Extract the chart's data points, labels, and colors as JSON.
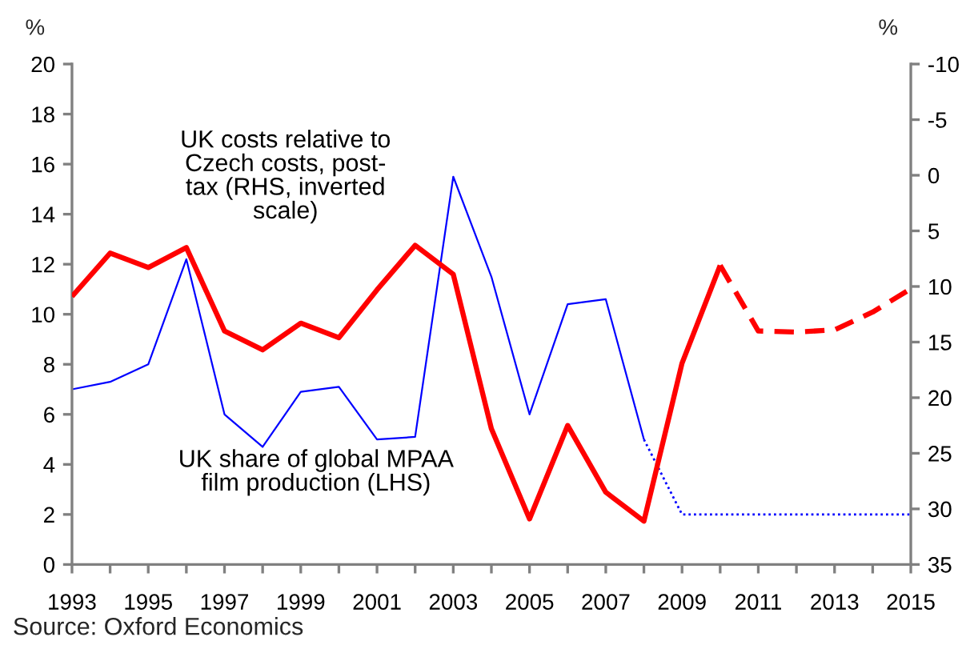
{
  "chart_data": {
    "type": "line",
    "ylabel": "%",
    "y2label": "%",
    "xlim": [
      1993,
      2015
    ],
    "xticks": [
      1993,
      {
        "value": 1994,
        "label": null
      },
      1995,
      {
        "value": 1996,
        "label": null
      },
      1997,
      {
        "value": 1998,
        "label": null
      },
      1999,
      {
        "value": 2000,
        "label": null
      },
      2001,
      {
        "value": 2002,
        "label": null
      },
      2003,
      {
        "value": 2004,
        "label": null
      },
      2005,
      {
        "value": 2006,
        "label": null
      },
      2007,
      {
        "value": 2008,
        "label": null
      },
      2009,
      {
        "value": 2010,
        "label": null
      },
      2011,
      {
        "value": 2012,
        "label": null
      },
      2013,
      {
        "value": 2014,
        "label": null
      },
      2015
    ],
    "ylim": [
      0,
      20
    ],
    "yticks": [
      0,
      2,
      4,
      6,
      8,
      10,
      12,
      14,
      16,
      18,
      20
    ],
    "y2lim": [
      35,
      -10
    ],
    "y2ticks": [
      -10,
      -5,
      0,
      5,
      10,
      15,
      20,
      25,
      30,
      35
    ],
    "series": [
      {
        "name": "UK share of global MPAA\nfilm production (LHS)",
        "color": "#0000ff",
        "axis": "y",
        "line_style": "solid",
        "x": [
          1993,
          1994,
          1995,
          1996,
          1997,
          1998,
          1999,
          2000,
          2001,
          2002,
          2003,
          2004,
          2005,
          2006,
          2007,
          2008
        ],
        "values": [
          7.0,
          7.3,
          8.0,
          12.2,
          6.0,
          4.7,
          6.9,
          7.1,
          5.0,
          5.1,
          15.5,
          11.5,
          6.0,
          10.4,
          10.6,
          5.0
        ]
      },
      {
        "color": "#0000ff",
        "axis": "y",
        "line_style": "dotted",
        "x": [
          2008,
          2009,
          2010,
          2011,
          2012,
          2013,
          2014,
          2015
        ],
        "values": [
          5.0,
          2.0,
          2.0,
          2.0,
          2.0,
          2.0,
          2.0,
          2.0
        ]
      },
      {
        "name": "UK costs relative to\nCzech costs, post-\ntax (RHS, inverted\nscale)",
        "color": "#ff0000",
        "axis": "y2",
        "line_style": "solid",
        "x": [
          1993,
          1994,
          1995,
          1996,
          1997,
          1998,
          1999,
          2000,
          2001,
          2002,
          2003,
          2004,
          2005,
          2006,
          2007,
          2008,
          2009,
          2010
        ],
        "values": [
          10.9,
          7.0,
          8.3,
          6.5,
          14.0,
          15.7,
          13.3,
          14.6,
          10.3,
          6.3,
          8.9,
          22.8,
          30.9,
          22.5,
          28.5,
          31.1,
          16.9,
          8.1
        ]
      },
      {
        "color": "#ff0000",
        "axis": "y2",
        "line_style": "dashed",
        "x": [
          2010,
          2011,
          2012,
          2013,
          2014,
          2015
        ],
        "values": [
          8.1,
          14.0,
          14.1,
          13.9,
          12.3,
          10.2
        ]
      }
    ],
    "annotations": [
      "Source: Oxford Economics"
    ]
  }
}
